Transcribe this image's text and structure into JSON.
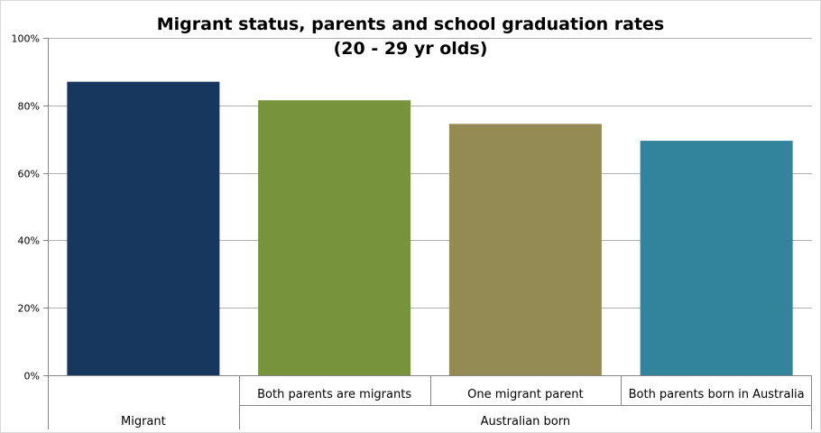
{
  "chart_data": {
    "type": "bar",
    "title": "Migrant status, parents and school graduation rates",
    "subtitle": "(20 - 29 yr olds)",
    "categories": [
      "Migrant",
      "Both parents are migrants",
      "One migrant parent",
      "Both parents born in Australia"
    ],
    "category_groups": [
      {
        "label": "Migrant",
        "members": [
          "Migrant"
        ]
      },
      {
        "label": "Australian born",
        "members": [
          "Both parents are migrants",
          "One migrant parent",
          "Both parents born in Australia"
        ]
      }
    ],
    "values": [
      0.87,
      0.815,
      0.745,
      0.695
    ],
    "colors": [
      "#17375e",
      "#77933c",
      "#948a54",
      "#31849b"
    ],
    "ylim": [
      0,
      1
    ],
    "yticks": [
      0,
      0.2,
      0.4,
      0.6,
      0.8,
      1.0
    ],
    "ytick_labels": [
      "0%",
      "20%",
      "40%",
      "60%",
      "80%",
      "100%"
    ],
    "grid": true,
    "xlabel": "",
    "ylabel": ""
  }
}
